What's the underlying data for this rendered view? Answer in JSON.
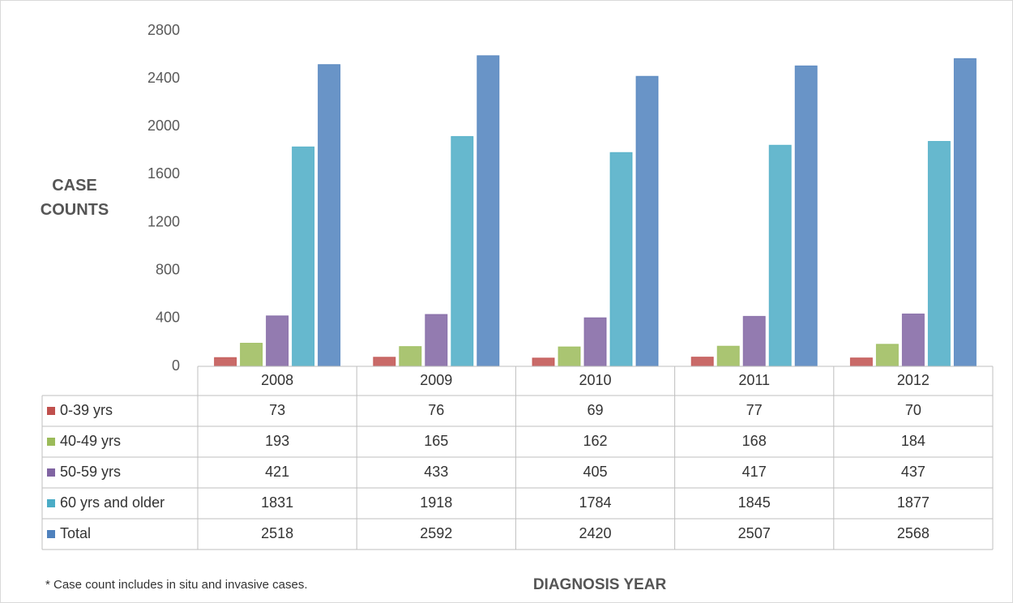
{
  "chart_data": {
    "type": "bar",
    "y_label": "CASE COUNTS",
    "x_label": "DIAGNOSIS YEAR",
    "note": "* Case count includes in situ and invasive cases.",
    "categories": [
      "2008",
      "2009",
      "2010",
      "2011",
      "2012"
    ],
    "series": [
      {
        "name": "0-39 yrs",
        "color": "#c0504d",
        "values": [
          73,
          76,
          69,
          77,
          70
        ]
      },
      {
        "name": "40-49 yrs",
        "color": "#9bbb59",
        "values": [
          193,
          165,
          162,
          168,
          184
        ]
      },
      {
        "name": "50-59 yrs",
        "color": "#8064a2",
        "values": [
          421,
          433,
          405,
          417,
          437
        ]
      },
      {
        "name": "60 yrs and older",
        "color": "#4bacc6",
        "values": [
          1831,
          1918,
          1784,
          1845,
          1877
        ]
      },
      {
        "name": "Total",
        "color": "#4f81bd",
        "values": [
          2518,
          2592,
          2420,
          2507,
          2568
        ]
      }
    ],
    "ylim": [
      0,
      2800
    ],
    "yticks": [
      0,
      400,
      800,
      1200,
      1600,
      2000,
      2400,
      2800
    ],
    "grid": false
  }
}
